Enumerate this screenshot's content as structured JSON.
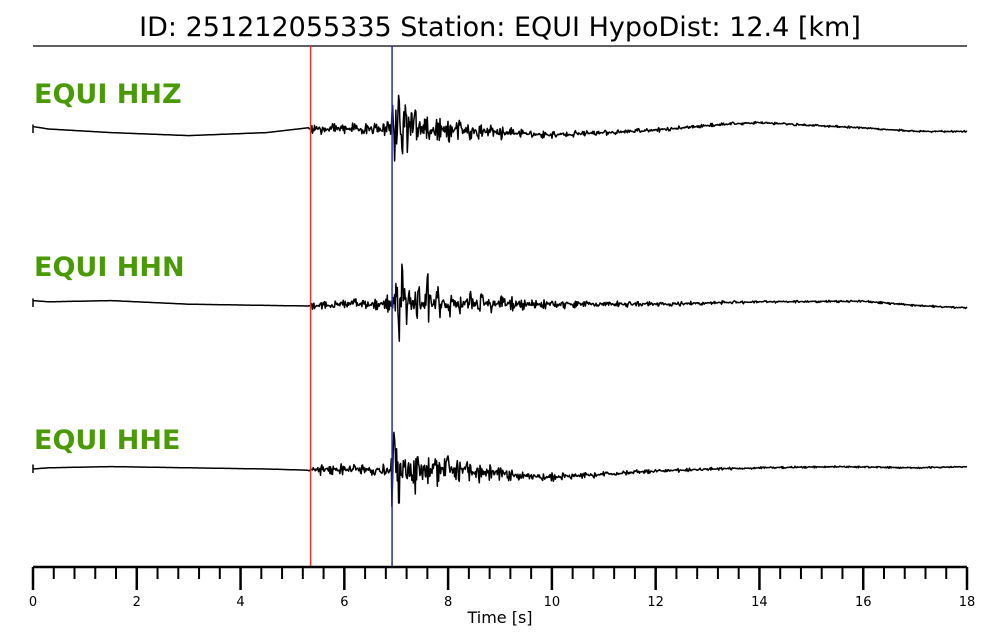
{
  "chart_data": {
    "type": "line",
    "title": "ID: 251212055335   Station: EQUI   HypoDist:     12.4 [km]",
    "xlabel": "Time [s]",
    "ylabel": "",
    "xlim": [
      0,
      18
    ],
    "x_ticks": [
      0,
      2,
      4,
      6,
      8,
      10,
      12,
      14,
      16,
      18
    ],
    "x_minor_step": 0.4,
    "grid": false,
    "legend": "none",
    "picks": [
      {
        "phase": "P",
        "time": 5.35,
        "color": "#e8322e"
      },
      {
        "phase": "S",
        "time": 6.92,
        "color": "#2c2ca8"
      }
    ],
    "series": [
      {
        "name": "EQUI HHZ",
        "color": "#000000",
        "label_color": "#4a9a06",
        "baseline": [
          [
            0,
            0.2
          ],
          [
            0.3,
            0.0
          ],
          [
            1.5,
            -0.3
          ],
          [
            3,
            -0.55
          ],
          [
            4.5,
            -0.3
          ],
          [
            5.3,
            0.1
          ],
          [
            6,
            0.0
          ],
          [
            8,
            -0.1
          ],
          [
            10,
            -0.5
          ],
          [
            12,
            -0.1
          ],
          [
            13,
            0.3
          ],
          [
            14,
            0.55
          ],
          [
            15,
            0.3
          ],
          [
            16,
            0.1
          ],
          [
            17,
            -0.2
          ],
          [
            18,
            -0.2
          ]
        ],
        "noise": [
          [
            0,
            0.0
          ],
          [
            5.3,
            0.0
          ],
          [
            5.4,
            0.55
          ],
          [
            6.8,
            0.65
          ],
          [
            6.9,
            2.2
          ],
          [
            7.1,
            2.4
          ],
          [
            8.0,
            1.1
          ],
          [
            9.5,
            0.4
          ],
          [
            11,
            0.25
          ],
          [
            14,
            0.12
          ],
          [
            18,
            0.08
          ]
        ],
        "spikes": [
          [
            7.05,
            3.2
          ],
          [
            7.12,
            -2.1
          ],
          [
            6.98,
            -1.6
          ],
          [
            7.3,
            1.4
          ],
          [
            6.92,
            1.0
          ]
        ],
        "seed": 11
      },
      {
        "name": "EQUI HHN",
        "color": "#000000",
        "label_color": "#4a9a06",
        "baseline": [
          [
            0,
            0.2
          ],
          [
            0.3,
            0.1
          ],
          [
            1.5,
            0.2
          ],
          [
            3,
            -0.1
          ],
          [
            4.5,
            -0.2
          ],
          [
            5.3,
            -0.25
          ],
          [
            6,
            -0.1
          ],
          [
            8,
            0.0
          ],
          [
            10,
            -0.1
          ],
          [
            12,
            -0.1
          ],
          [
            14,
            0.1
          ],
          [
            16,
            0.15
          ],
          [
            17,
            -0.2
          ],
          [
            18,
            -0.4
          ]
        ],
        "noise": [
          [
            0,
            0.0
          ],
          [
            5.3,
            0.0
          ],
          [
            5.4,
            0.4
          ],
          [
            6.8,
            0.6
          ],
          [
            7.0,
            1.9
          ],
          [
            7.2,
            2.3
          ],
          [
            8.0,
            1.2
          ],
          [
            9.5,
            0.5
          ],
          [
            11,
            0.3
          ],
          [
            14,
            0.12
          ],
          [
            18,
            0.08
          ]
        ],
        "spikes": [
          [
            7.12,
            3.0
          ],
          [
            7.05,
            -2.0
          ],
          [
            7.4,
            -1.6
          ],
          [
            7.6,
            1.3
          ]
        ],
        "seed": 23
      },
      {
        "name": "EQUI HHE",
        "color": "#000000",
        "label_color": "#4a9a06",
        "baseline": [
          [
            0,
            0.0
          ],
          [
            0.3,
            0.1
          ],
          [
            1.5,
            0.2
          ],
          [
            3,
            0.1
          ],
          [
            4.5,
            0.0
          ],
          [
            5.3,
            -0.1
          ],
          [
            6,
            0.0
          ],
          [
            8,
            -0.1
          ],
          [
            10,
            -0.7
          ],
          [
            11.5,
            -0.3
          ],
          [
            13,
            0.0
          ],
          [
            14,
            0.1
          ],
          [
            15.5,
            0.2
          ],
          [
            17,
            0.1
          ],
          [
            18,
            0.2
          ]
        ],
        "noise": [
          [
            0,
            0.0
          ],
          [
            5.3,
            0.0
          ],
          [
            5.4,
            0.45
          ],
          [
            6.8,
            0.6
          ],
          [
            6.95,
            2.6
          ],
          [
            7.2,
            2.5
          ],
          [
            8.0,
            1.3
          ],
          [
            9.5,
            0.45
          ],
          [
            11,
            0.25
          ],
          [
            14,
            0.1
          ],
          [
            18,
            0.07
          ]
        ],
        "spikes": [
          [
            7.05,
            -3.0
          ],
          [
            6.95,
            2.0
          ],
          [
            7.15,
            2.3
          ],
          [
            6.92,
            -1.8
          ]
        ],
        "seed": 37
      }
    ]
  }
}
